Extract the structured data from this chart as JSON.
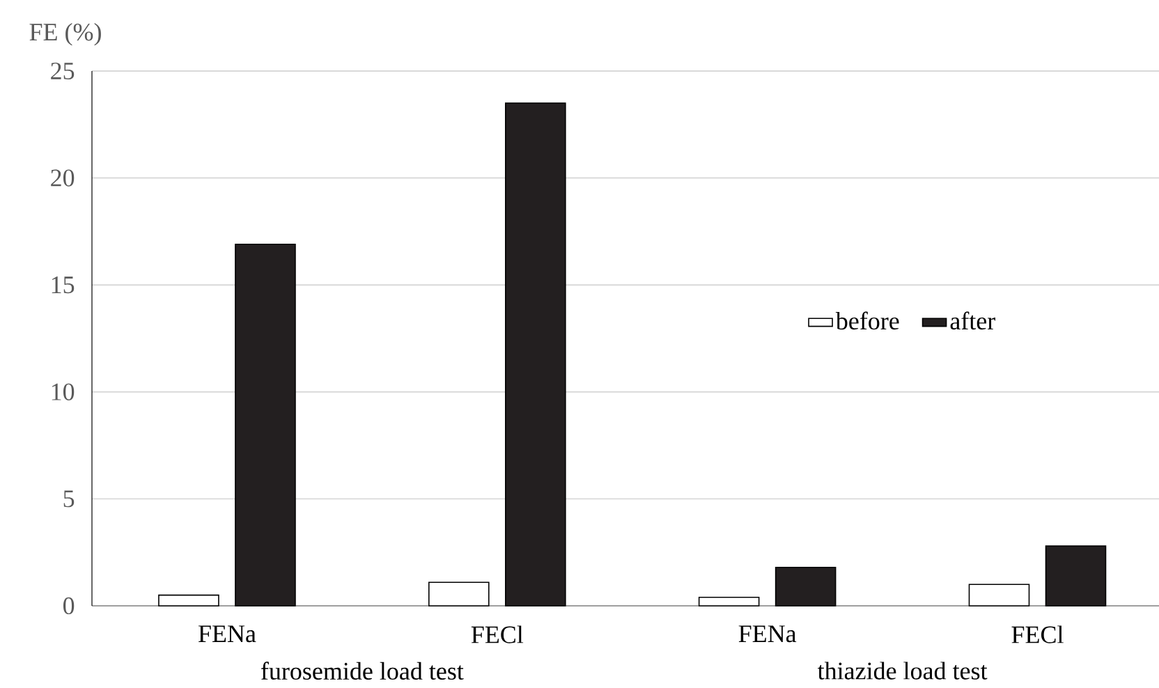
{
  "chart_data": {
    "type": "bar",
    "ylabel": "FE (%)",
    "categories": [
      "FENa",
      "FECl",
      "FENa",
      "FECl"
    ],
    "series": [
      {
        "name": "before",
        "color": "#ffffff",
        "values": [
          0.5,
          1.1,
          0.4,
          1.0
        ]
      },
      {
        "name": "after",
        "color": "#231f20",
        "values": [
          16.9,
          23.5,
          1.8,
          2.8
        ]
      }
    ],
    "ylim": [
      0,
      25
    ],
    "yticks": [
      0,
      5,
      10,
      15,
      20,
      25
    ],
    "grid": "y",
    "legend": "right",
    "annotations": [
      "furosemide load test",
      "thiazide load test"
    ]
  }
}
